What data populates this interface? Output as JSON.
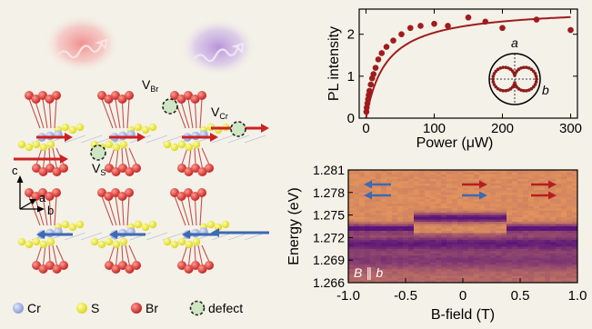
{
  "structure_panel": {
    "labels": {
      "v_br_main": "V",
      "v_br_sub": "Br",
      "v_cr_main": "V",
      "v_cr_sub": "Cr",
      "v_s_main": "V",
      "v_s_sub": "S"
    },
    "axes": {
      "c": "c",
      "a": "a",
      "b": "b"
    },
    "legend": [
      {
        "label": "Cr",
        "color": "#a9b5e3"
      },
      {
        "label": "S",
        "color": "#f3f032"
      },
      {
        "label": "Br",
        "color": "#d93b3b"
      },
      {
        "label": "defect",
        "color": "#cfe6c2"
      }
    ],
    "colors": {
      "cr": "#a9b5e3",
      "s": "#f3f032",
      "br": "#d93b3b",
      "spin_up": "#cc2222",
      "spin_down": "#3d6ab0",
      "glow_red": "#f2a6a6",
      "glow_purple": "#c4a8dd"
    }
  },
  "chart_data": [
    {
      "type": "scatter",
      "title": "",
      "xlabel": "Power (μW)",
      "ylabel": "PL intensity",
      "xlim": [
        -10,
        310
      ],
      "ylim": [
        0,
        2.6
      ],
      "xticks": [
        0,
        100,
        200,
        300
      ],
      "xtick_labels": [
        "0",
        "100",
        "200",
        "300"
      ],
      "yticks": [
        0,
        1,
        2
      ],
      "ytick_labels": [
        "0",
        "1",
        "2"
      ],
      "series": [
        {
          "type": "scatter",
          "color": "#a01c1c",
          "x": [
            0.5,
            1,
            2,
            3,
            4,
            5,
            7,
            9,
            11,
            14,
            18,
            23,
            30,
            40,
            52,
            65,
            80,
            100,
            120,
            150,
            175,
            200,
            250,
            300
          ],
          "y": [
            0.15,
            0.25,
            0.35,
            0.45,
            0.55,
            0.65,
            0.8,
            0.95,
            1.05,
            1.2,
            1.4,
            1.55,
            1.7,
            1.85,
            2.0,
            2.15,
            2.2,
            2.25,
            2.2,
            2.4,
            2.3,
            2.15,
            2.35,
            2.1
          ]
        },
        {
          "type": "line",
          "color": "#a01c1c",
          "fit": {
            "a": 2.65,
            "p0": 30
          }
        }
      ],
      "inset": {
        "label_a": "a",
        "label_b": "b"
      }
    },
    {
      "type": "heatmap",
      "title": "",
      "xlabel": "B-field (T)",
      "ylabel": "Energy (eV)",
      "xlim": [
        -1.0,
        1.0
      ],
      "ylim": [
        1.266,
        1.281
      ],
      "xticks": [
        -1.0,
        -0.5,
        0,
        0.5,
        1.0
      ],
      "xtick_labels": [
        "-1.0",
        "-0.5",
        "0",
        "0.5",
        "1.0"
      ],
      "yticks": [
        1.281,
        1.278,
        1.275,
        1.272,
        1.269,
        1.266
      ],
      "ytick_labels": [
        "1.281",
        "1.278",
        "1.275",
        "1.272",
        "1.269",
        "1.266"
      ],
      "transitions": [
        -0.45,
        0.38
      ],
      "annotation_main": "B",
      "annotation_rel": "∥",
      "annotation_axis": "b"
    }
  ]
}
